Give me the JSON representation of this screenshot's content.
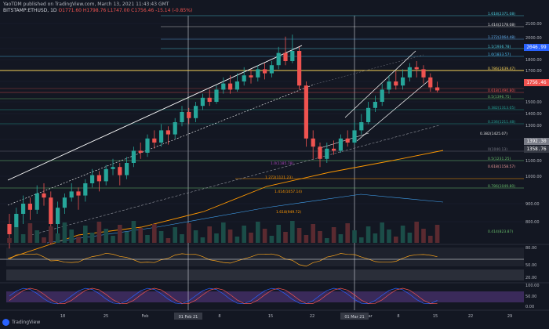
{
  "header": {
    "published": "YaoTDM published on TradingView.com, March 13, 2021 11:43:43 GMT",
    "symbol_line": "BITSTAMP:ETHUSD, 1D",
    "ohlc": "O1771.60 H1798.76 L1747.00 C1756.46 -15.14 (-0.85%)",
    "sub1": "",
    "sub2": ""
  },
  "price_scale": {
    "labels": [
      "2100.00",
      "2000.00",
      "1900.00",
      "1800.00",
      "1700.00",
      "1600.00",
      "1500.00",
      "1400.00",
      "1300.00",
      "1200.00",
      "1100.00",
      "1000.00",
      "900.00",
      "800.00"
    ],
    "boxes": [
      {
        "text": "2046.99",
        "color": "#2962ff"
      },
      {
        "text": "1756.46",
        "color": "#ef5350"
      },
      {
        "text": "1392.30",
        "color": "#787b86"
      },
      {
        "text": "1358.76",
        "color": "#2a2e39"
      }
    ],
    "rsi_labels": [
      "80.00",
      "50.00",
      "20.00"
    ],
    "stoch_labels": [
      "100.00",
      "50.00",
      "0.00"
    ]
  },
  "time_axis": {
    "labels": [
      "18",
      "25",
      "Feb",
      "8",
      "15",
      "22",
      "Mar",
      "8",
      "15",
      "22",
      "29"
    ],
    "highlight_left": "01 Feb 21",
    "highlight_right": "01 Mar 21"
  },
  "fib_levels": [
    {
      "text": "1.618(2371.08)",
      "color": "#4dd0e1"
    },
    {
      "text": "1.414(2178.08)",
      "color": "#e0e0e0"
    },
    {
      "text": "1.272(2064.48)",
      "color": "#64b5f6"
    },
    {
      "text": "1.1(1936.78)",
      "color": "#4dd0e1"
    },
    {
      "text": "1.0(1833.57)",
      "color": "#4fc3f7"
    },
    {
      "text": "0.786(1639.47)",
      "color": "#f7d358"
    },
    {
      "text": "0.618(1490.80)",
      "color": "#ef5350"
    },
    {
      "text": "0.5(1396.75)",
      "color": "#66bb6a"
    },
    {
      "text": "0.382(1313.05)",
      "color": "#26a69a"
    },
    {
      "text": "0.236(1211.48)",
      "color": "#26a69a"
    },
    {
      "text": "0(1040.13)",
      "color": "#787b86"
    }
  ],
  "ext_levels": [
    {
      "text": "0.382(1425.07)",
      "color": "#e0e0e0"
    },
    {
      "text": "0.5(1231.25)",
      "color": "#66bb6a"
    },
    {
      "text": "0.618(1158.57)",
      "color": "#ef9a9a"
    },
    {
      "text": "0.786(1049.80)",
      "color": "#66bb6a"
    },
    {
      "text": "0.414(823.87)",
      "color": "#66bb6a"
    }
  ],
  "lower_fibs": [
    {
      "text": "1.0(1185.78)",
      "color": "#ab47bc"
    },
    {
      "text": "1.272(1121.23)",
      "color": "#ff9800"
    },
    {
      "text": "1.414(1057.14)",
      "color": "#ff9800"
    },
    {
      "text": "1.618(949.72)",
      "color": "#ff9800"
    }
  ],
  "watermark": "TradingView"
}
